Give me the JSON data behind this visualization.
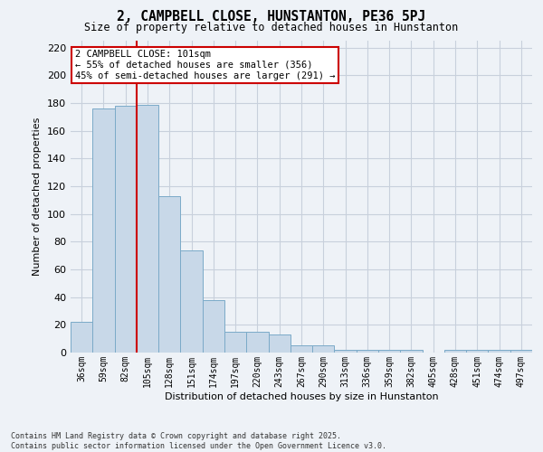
{
  "title": "2, CAMPBELL CLOSE, HUNSTANTON, PE36 5PJ",
  "subtitle": "Size of property relative to detached houses in Hunstanton",
  "xlabel": "Distribution of detached houses by size in Hunstanton",
  "ylabel": "Number of detached properties",
  "categories": [
    "36sqm",
    "59sqm",
    "82sqm",
    "105sqm",
    "128sqm",
    "151sqm",
    "174sqm",
    "197sqm",
    "220sqm",
    "243sqm",
    "267sqm",
    "290sqm",
    "313sqm",
    "336sqm",
    "359sqm",
    "382sqm",
    "405sqm",
    "428sqm",
    "451sqm",
    "474sqm",
    "497sqm"
  ],
  "values": [
    22,
    176,
    178,
    179,
    113,
    74,
    38,
    15,
    15,
    13,
    5,
    5,
    2,
    2,
    2,
    2,
    0,
    2,
    2,
    2,
    2
  ],
  "bar_color": "#c8d8e8",
  "bar_edge_color": "#7baac8",
  "grid_color": "#c8d0dc",
  "background_color": "#eef2f7",
  "vline_color": "#cc0000",
  "vline_x_index": 3,
  "annotation_text": "2 CAMPBELL CLOSE: 101sqm\n← 55% of detached houses are smaller (356)\n45% of semi-detached houses are larger (291) →",
  "annotation_box_facecolor": "#ffffff",
  "annotation_box_edgecolor": "#cc0000",
  "ylim": [
    0,
    225
  ],
  "yticks": [
    0,
    20,
    40,
    60,
    80,
    100,
    120,
    140,
    160,
    180,
    200,
    220
  ],
  "footnote": "Contains HM Land Registry data © Crown copyright and database right 2025.\nContains public sector information licensed under the Open Government Licence v3.0."
}
